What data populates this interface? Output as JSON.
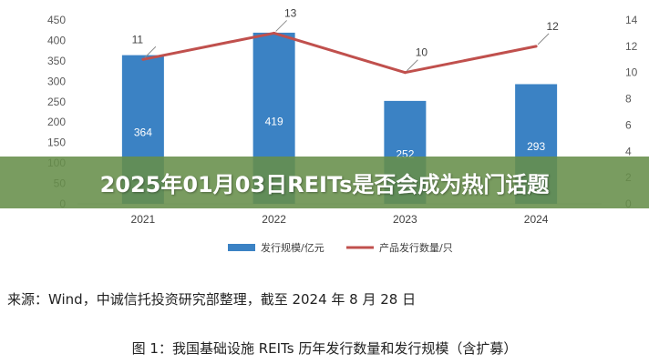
{
  "page": {
    "banner_title": "2025年01月03日REITs是否会成为热门话题",
    "source_note": "来源：Wind，中诚信托投资研究部整理，截至 2024 年 8 月 28 日",
    "figure_caption": "图 1：我国基础设施 REITs 历年发行数量和发行规模（含扩募）"
  },
  "chart_data": {
    "type": "bar",
    "title": "",
    "categories": [
      "2021",
      "2022",
      "2023",
      "2024"
    ],
    "series": [
      {
        "name": "发行规模/亿元",
        "type": "bar",
        "axis": "left",
        "color": "#3b82c4",
        "values": [
          364,
          419,
          252,
          293
        ]
      },
      {
        "name": "产品发行数量/只",
        "type": "line",
        "axis": "right",
        "color": "#c0504d",
        "values": [
          11,
          13,
          10,
          12
        ]
      }
    ],
    "left_axis": {
      "min": 0,
      "max": 450,
      "step": 50,
      "ticks": [
        "0",
        "50",
        "100",
        "150",
        "200",
        "250",
        "300",
        "350",
        "400",
        "450"
      ]
    },
    "right_axis": {
      "min": 0,
      "max": 14,
      "step": 2,
      "ticks": [
        "0",
        "2",
        "4",
        "6",
        "8",
        "10",
        "12",
        "14"
      ]
    },
    "grid": false,
    "legend_position": "bottom"
  }
}
